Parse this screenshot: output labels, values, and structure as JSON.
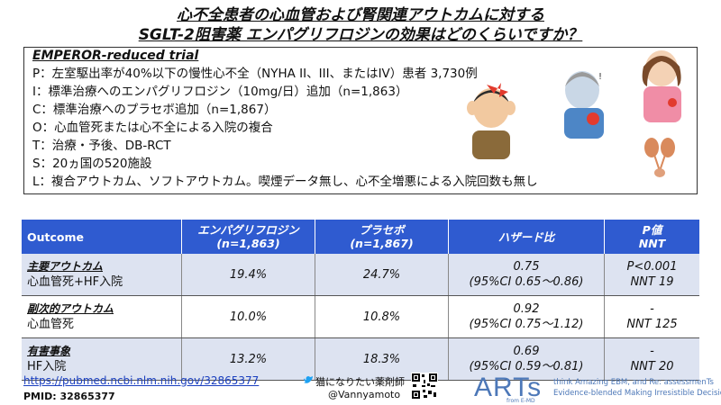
{
  "title": {
    "line1": "心不全患者の心血管および腎関連アウトカムに対する",
    "line2": "SGLT-2阻害薬 エンパグリフロジンの効果はどのくらいですか？"
  },
  "trial_name": "EMPEROR-reduced trial",
  "pico": [
    "P：左室駆出率が40%以下の慢性心不全（NYHA II、III、またはIV）患者 3,730例",
    "I：標準治療へのエンパグリフロジン（10mg/日）追加（n=1,863）",
    "C：標準治療へのプラセボ追加（n=1,867）",
    "O：心血管死または心不全による入院の複合",
    "T：治療・予後、DB-RCT",
    "S：20ヵ国の520施設",
    "L：複合アウトカム、ソフトアウトカム。喫煙データ無し、心不全増悪による入院回数も無し"
  ],
  "table": {
    "headers": [
      {
        "line1": "Outcome",
        "line2": ""
      },
      {
        "line1": "エンパグリフロジン",
        "line2": "(n=1,863)"
      },
      {
        "line1": "プラセボ",
        "line2": "(n=1,867)"
      },
      {
        "line1": "ハザード比",
        "line2": ""
      },
      {
        "line1": "P値",
        "line2": "NNT"
      }
    ],
    "rows": [
      {
        "heading": "主要アウトカム",
        "sub": "心血管死+HF入院",
        "empa": "19.4%",
        "placebo": "24.7%",
        "hr": "0.75",
        "ci": "(95%CI 0.65～0.86)",
        "p": "P<0.001",
        "nnt": "NNT 19"
      },
      {
        "heading": "副次的アウトカム",
        "sub": "心血管死",
        "empa": "10.0%",
        "placebo": "10.8%",
        "hr": "0.92",
        "ci": "(95%CI 0.75～1.12)",
        "p": "-",
        "nnt": "NNT 125"
      },
      {
        "heading": "有害事象",
        "sub": "HF入院",
        "empa": "13.2%",
        "placebo": "18.3%",
        "hr": "0.69",
        "ci": "(95%CI 0.59～0.81)",
        "p": "-",
        "nnt": "NNT 20"
      }
    ]
  },
  "footer": {
    "link": "https://pubmed.ncbi.nlm.nih.gov/32865377",
    "pmid": "PMID: 32865377",
    "author": "猫になりたい薬剤師",
    "handle": "@Vannyamoto",
    "brand": "ARTs",
    "brand_sub": "from E-MD",
    "tagline1": "think Amazing EBM, and Re: assessmenTs",
    "tagline2": "Evidence-blended Making Irresistible Decision"
  },
  "colors": {
    "header_blue": "#2f5bd0",
    "row_alt": "#dde3f1",
    "brand_blue": "#4d78b8"
  }
}
